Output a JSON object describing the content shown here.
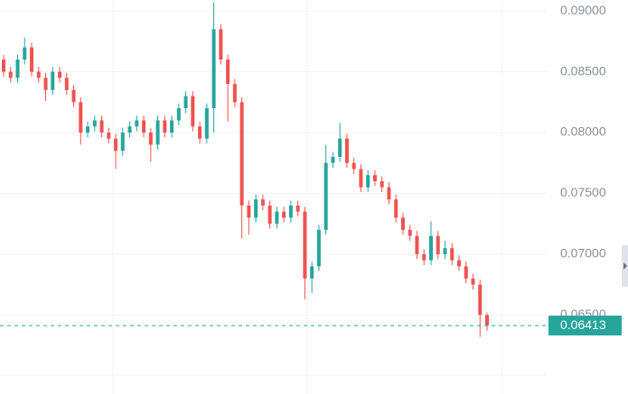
{
  "chart_data": {
    "type": "candlestick",
    "up_color": "#26a69a",
    "down_color": "#ef5350",
    "ylim": [
      0.0585,
      0.0909
    ],
    "yticks": [
      {
        "value": 0.09,
        "label": "0.09000"
      },
      {
        "value": 0.085,
        "label": "0.08500"
      },
      {
        "value": 0.08,
        "label": "0.08000"
      },
      {
        "value": 0.075,
        "label": "0.07500"
      },
      {
        "value": 0.07,
        "label": "0.07000"
      },
      {
        "value": 0.065,
        "label": "0.06500"
      }
    ],
    "grid": true,
    "last_price": 0.06413,
    "open": [
      0.086,
      0.085,
      0.0845,
      0.086,
      0.087,
      0.085,
      0.0845,
      0.0835,
      0.085,
      0.0845,
      0.0835,
      0.0825,
      0.08,
      0.0805,
      0.081,
      0.08,
      0.0795,
      0.0785,
      0.08,
      0.0805,
      0.081,
      0.08,
      0.079,
      0.081,
      0.08,
      0.081,
      0.082,
      0.083,
      0.0805,
      0.0795,
      0.082,
      0.0885,
      0.086,
      0.084,
      0.0825,
      0.074,
      0.073,
      0.0745,
      0.074,
      0.0725,
      0.0735,
      0.073,
      0.074,
      0.0735,
      0.068,
      0.069,
      0.072,
      0.0775,
      0.078,
      0.0795,
      0.0775,
      0.077,
      0.0755,
      0.0765,
      0.076,
      0.0755,
      0.0745,
      0.073,
      0.072,
      0.0715,
      0.07,
      0.0695,
      0.0715,
      0.07,
      0.0705,
      0.0695,
      0.069,
      0.068,
      0.0675,
      0.065
    ],
    "high": [
      0.0864,
      0.0854,
      0.0864,
      0.0878,
      0.0874,
      0.0854,
      0.0849,
      0.0854,
      0.0854,
      0.0849,
      0.0839,
      0.0829,
      0.0809,
      0.0814,
      0.0814,
      0.0804,
      0.0799,
      0.0804,
      0.0809,
      0.0814,
      0.0814,
      0.0804,
      0.0814,
      0.0814,
      0.0814,
      0.0824,
      0.0834,
      0.0834,
      0.0809,
      0.0824,
      0.0907,
      0.0889,
      0.0864,
      0.0844,
      0.0829,
      0.0744,
      0.0749,
      0.0749,
      0.0744,
      0.0739,
      0.0739,
      0.0744,
      0.0744,
      0.0739,
      0.0694,
      0.0724,
      0.079,
      0.0784,
      0.0808,
      0.0799,
      0.0779,
      0.0774,
      0.0769,
      0.0769,
      0.0764,
      0.0759,
      0.0749,
      0.0734,
      0.0724,
      0.0719,
      0.0704,
      0.0727,
      0.0719,
      0.0711,
      0.0709,
      0.0699,
      0.0694,
      0.0684,
      0.0679,
      0.0652
    ],
    "low": [
      0.0846,
      0.0841,
      0.0841,
      0.0856,
      0.0846,
      0.0841,
      0.0826,
      0.0831,
      0.0841,
      0.0831,
      0.0821,
      0.079,
      0.0796,
      0.0801,
      0.0796,
      0.0791,
      0.077,
      0.0781,
      0.0796,
      0.0801,
      0.0796,
      0.0776,
      0.0786,
      0.0796,
      0.0796,
      0.0806,
      0.0816,
      0.0801,
      0.0791,
      0.0791,
      0.08,
      0.0856,
      0.0809,
      0.0821,
      0.0713,
      0.0716,
      0.0726,
      0.0736,
      0.0721,
      0.0721,
      0.0726,
      0.0726,
      0.0731,
      0.0663,
      0.0668,
      0.0686,
      0.0716,
      0.0771,
      0.0776,
      0.0771,
      0.0766,
      0.0751,
      0.0751,
      0.0756,
      0.0751,
      0.0741,
      0.0726,
      0.0716,
      0.0711,
      0.0696,
      0.0691,
      0.0691,
      0.0696,
      0.0696,
      0.0691,
      0.0686,
      0.0676,
      0.0671,
      0.0632,
      0.0637
    ],
    "close": [
      0.085,
      0.0845,
      0.086,
      0.087,
      0.085,
      0.0845,
      0.0835,
      0.085,
      0.0845,
      0.0835,
      0.0825,
      0.08,
      0.0805,
      0.081,
      0.08,
      0.0795,
      0.0785,
      0.08,
      0.0805,
      0.081,
      0.08,
      0.079,
      0.081,
      0.08,
      0.081,
      0.082,
      0.083,
      0.0805,
      0.0795,
      0.082,
      0.0885,
      0.086,
      0.084,
      0.0825,
      0.074,
      0.073,
      0.0745,
      0.074,
      0.0725,
      0.0735,
      0.073,
      0.074,
      0.0735,
      0.068,
      0.069,
      0.072,
      0.0775,
      0.078,
      0.0795,
      0.0775,
      0.077,
      0.0755,
      0.0765,
      0.076,
      0.0755,
      0.0745,
      0.073,
      0.072,
      0.0715,
      0.07,
      0.0695,
      0.0715,
      0.07,
      0.0705,
      0.0695,
      0.069,
      0.068,
      0.0675,
      0.065,
      0.06413
    ]
  }
}
